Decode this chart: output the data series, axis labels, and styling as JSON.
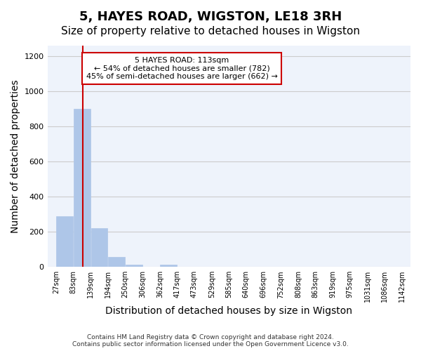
{
  "title": "5, HAYES ROAD, WIGSTON, LE18 3RH",
  "subtitle": "Size of property relative to detached houses in Wigston",
  "xlabel": "Distribution of detached houses by size in Wigston",
  "ylabel": "Number of detached properties",
  "bin_edges": [
    27,
    83,
    139,
    194,
    250,
    306,
    362,
    417,
    473,
    529,
    585,
    640,
    696,
    752,
    808,
    863,
    919,
    975,
    1031,
    1086,
    1142
  ],
  "bar_heights": [
    290,
    900,
    220,
    55,
    12,
    0,
    12,
    0,
    0,
    0,
    0,
    0,
    0,
    0,
    0,
    0,
    0,
    0,
    0,
    0
  ],
  "bar_color": "#aec6e8",
  "bar_edge_color": "#aec6e8",
  "grid_color": "#cccccc",
  "background_color": "#eef3fb",
  "property_size": 113,
  "red_line_color": "#cc0000",
  "annotation_text": "5 HAYES ROAD: 113sqm\n← 54% of detached houses are smaller (782)\n45% of semi-detached houses are larger (662) →",
  "annotation_box_color": "#ffffff",
  "annotation_box_edge_color": "#cc0000",
  "ylim": [
    0,
    1260
  ],
  "yticks": [
    0,
    200,
    400,
    600,
    800,
    1000,
    1200
  ],
  "footnote": "Contains HM Land Registry data © Crown copyright and database right 2024.\nContains public sector information licensed under the Open Government Licence v3.0.",
  "title_fontsize": 13,
  "subtitle_fontsize": 11,
  "xlabel_fontsize": 10,
  "ylabel_fontsize": 10
}
